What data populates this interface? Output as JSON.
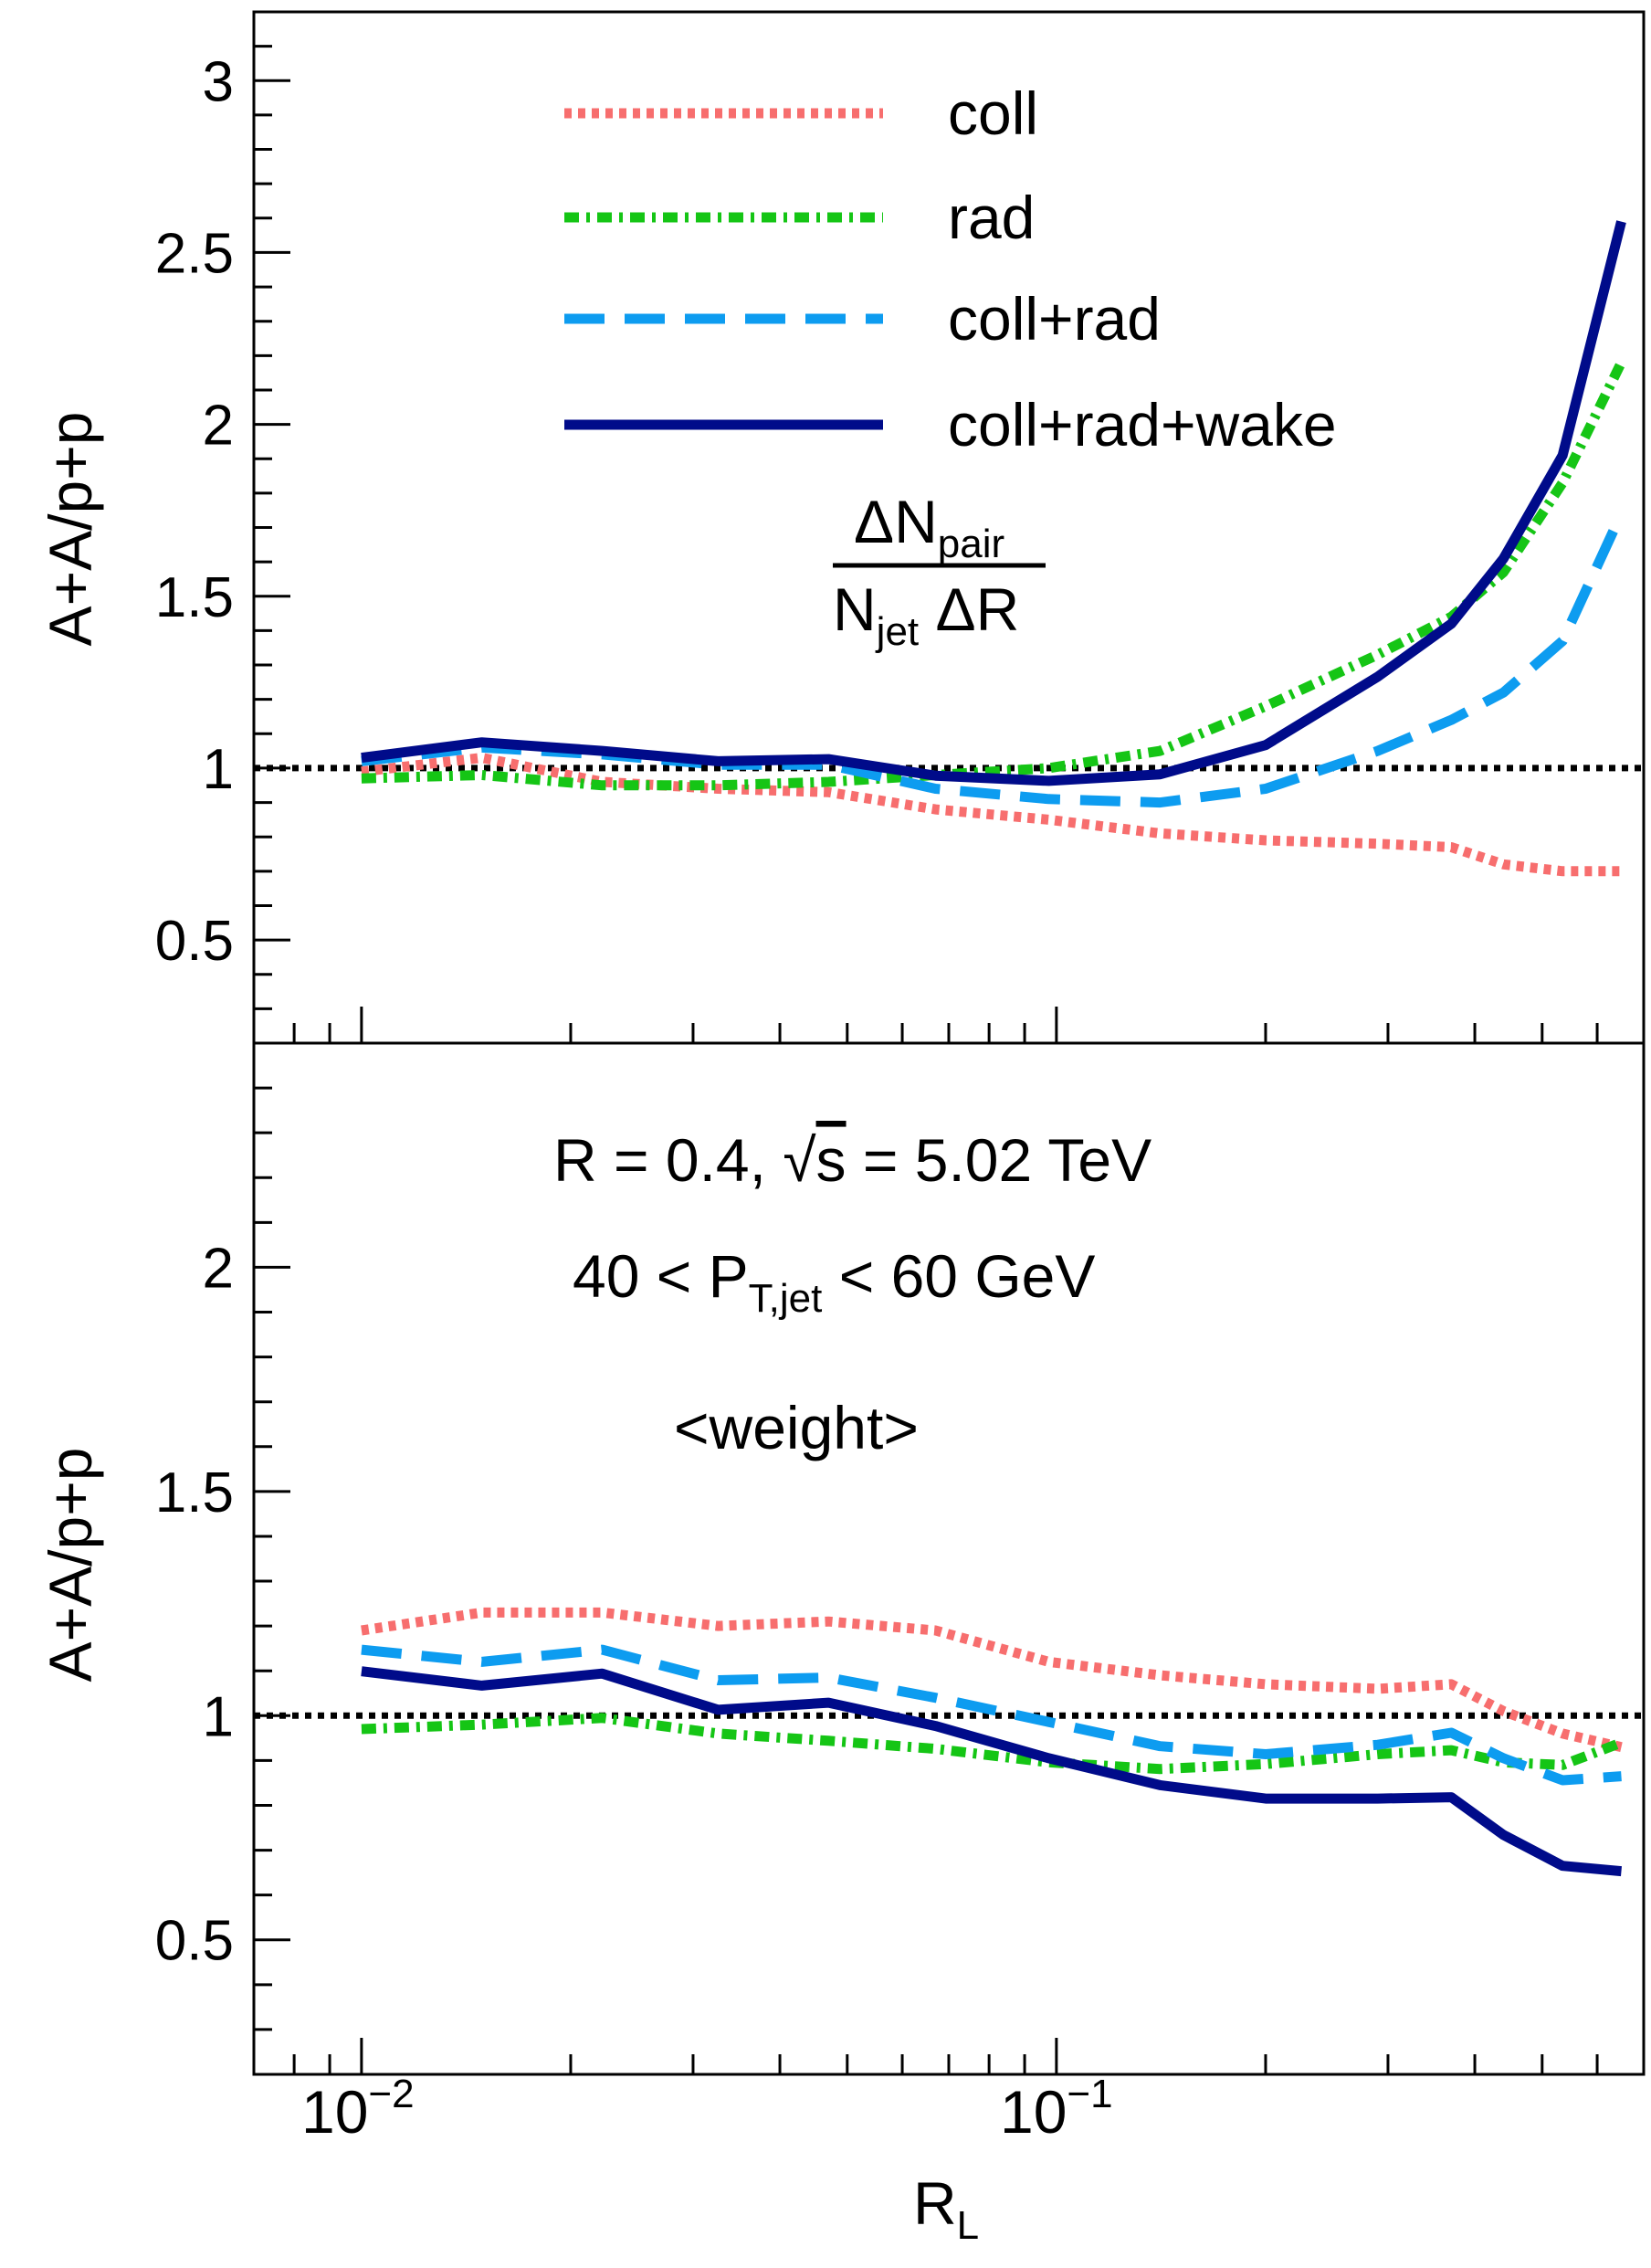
{
  "chart_data": [
    {
      "type": "line",
      "panel": "top",
      "ylabel": "A+A/p+p",
      "ylim": [
        0.2,
        3.2
      ],
      "yticks": [
        "0.5",
        "1",
        "1.5",
        "2",
        "2.5",
        "3"
      ],
      "xlim": [
        0.007,
        0.7
      ],
      "xscale": "log",
      "reference_line": 1,
      "annotation": {
        "num_main": "ΔN",
        "num_sub": "pair",
        "den_main": "N",
        "den_sub": "jet",
        "den_tail": " ΔR"
      },
      "legend": {
        "placement": "top-center",
        "entries": [
          "coll",
          "rad",
          "coll+rad",
          "coll+rad+wake"
        ]
      },
      "x": [
        0.01,
        0.0149,
        0.0222,
        0.0326,
        0.047,
        0.067,
        0.0975,
        0.141,
        0.2,
        0.29,
        0.37,
        0.44,
        0.535,
        0.65
      ],
      "series": [
        {
          "name": "coll",
          "color": "#f76e6e",
          "style": "dotted",
          "values": [
            0.99,
            1.03,
            0.96,
            0.94,
            0.93,
            0.88,
            0.85,
            0.81,
            0.79,
            0.78,
            0.77,
            0.72,
            0.7,
            0.7
          ]
        },
        {
          "name": "rad",
          "color": "#15c515",
          "style": "dash-dot",
          "values": [
            0.97,
            0.98,
            0.95,
            0.95,
            0.96,
            0.98,
            1.0,
            1.05,
            1.18,
            1.33,
            1.44,
            1.57,
            1.83,
            2.18
          ]
        },
        {
          "name": "coll+rad",
          "color": "#0d9cf0",
          "style": "dashed",
          "values": [
            1.02,
            1.06,
            1.04,
            1.01,
            1.01,
            0.94,
            0.91,
            0.9,
            0.94,
            1.05,
            1.14,
            1.22,
            1.37,
            1.74
          ]
        },
        {
          "name": "coll+rad+wake",
          "color": "#000b8a",
          "style": "solid",
          "values": [
            1.03,
            1.075,
            1.05,
            1.02,
            1.026,
            0.978,
            0.963,
            0.982,
            1.067,
            1.266,
            1.42,
            1.61,
            1.91,
            2.59
          ]
        }
      ]
    },
    {
      "type": "line",
      "panel": "bottom",
      "ylabel": "A+A/p+p",
      "xlabel_main": "R",
      "xlabel_sub": "L",
      "ylim": [
        0.2,
        2.5
      ],
      "yticks": [
        "0.5",
        "1",
        "1.5",
        "2"
      ],
      "xlim": [
        0.007,
        0.7
      ],
      "xscale": "log",
      "xticks": [
        {
          "base": "10",
          "exp": "−2"
        },
        {
          "base": "10",
          "exp": "−1"
        }
      ],
      "reference_line": 1,
      "annotations": {
        "line1_pre": "R = 0.4, ",
        "line1_sqrt": "√",
        "line1_s": "s",
        "line1_post": " = 5.02 TeV",
        "line2_pre": "40 < P",
        "line2_sub": "T,jet",
        "line2_post": " < 60 GeV",
        "line3": "<weight>"
      },
      "x": [
        0.01,
        0.0149,
        0.0222,
        0.0326,
        0.047,
        0.067,
        0.0975,
        0.141,
        0.2,
        0.29,
        0.37,
        0.44,
        0.535,
        0.65
      ],
      "series": [
        {
          "name": "coll",
          "color": "#f76e6e",
          "style": "dotted",
          "values": [
            1.19,
            1.23,
            1.23,
            1.2,
            1.21,
            1.19,
            1.12,
            1.09,
            1.07,
            1.06,
            1.07,
            1.01,
            0.96,
            0.93
          ]
        },
        {
          "name": "rad",
          "color": "#15c515",
          "style": "dash-dot",
          "values": [
            0.97,
            0.98,
            0.995,
            0.96,
            0.944,
            0.926,
            0.896,
            0.881,
            0.892,
            0.914,
            0.923,
            0.896,
            0.89,
            0.94
          ]
        },
        {
          "name": "coll+rad",
          "color": "#0d9cf0",
          "style": "dashed",
          "values": [
            1.147,
            1.12,
            1.147,
            1.079,
            1.085,
            1.04,
            0.986,
            0.932,
            0.914,
            0.935,
            0.962,
            0.905,
            0.856,
            0.865
          ]
        },
        {
          "name": "coll+rad+wake",
          "color": "#000b8a",
          "style": "solid",
          "values": [
            1.099,
            1.067,
            1.094,
            1.013,
            1.029,
            0.977,
            0.905,
            0.845,
            0.815,
            0.815,
            0.818,
            0.734,
            0.665,
            0.653
          ]
        }
      ]
    }
  ]
}
